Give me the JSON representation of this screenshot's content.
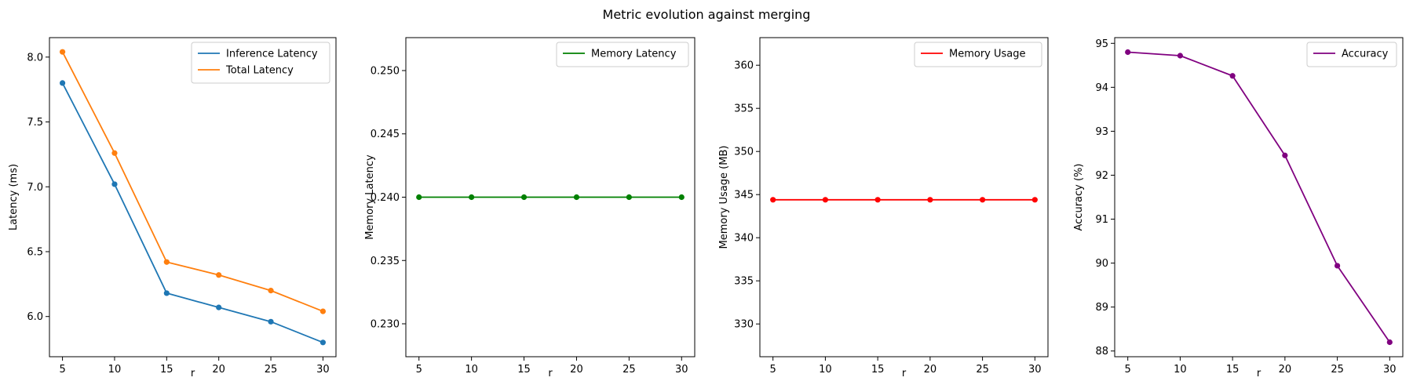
{
  "figure": {
    "title": "Metric evolution against merging"
  },
  "chart_data": [
    {
      "type": "line",
      "xlabel": "r",
      "ylabel": "Latency (ms)",
      "x": [
        5,
        10,
        15,
        20,
        25,
        30
      ],
      "xticks": [
        "5",
        "10",
        "15",
        "20",
        "25",
        "30"
      ],
      "xlim": [
        3.75,
        31.25
      ],
      "ylim": [
        5.69,
        8.15
      ],
      "yticks": [
        6.0,
        6.5,
        7.0,
        7.5,
        8.0
      ],
      "ytick_labels": [
        "6.0",
        "6.5",
        "7.0",
        "7.5",
        "8.0"
      ],
      "legend": "upper right",
      "series": [
        {
          "name": "Inference Latency",
          "color": "#1f77b4",
          "values": [
            7.8,
            7.02,
            6.18,
            6.07,
            5.96,
            5.8
          ]
        },
        {
          "name": "Total Latency",
          "color": "#ff7f0e",
          "values": [
            8.04,
            7.26,
            6.42,
            6.32,
            6.2,
            6.04
          ]
        }
      ]
    },
    {
      "type": "line",
      "xlabel": "r",
      "ylabel": "Memory Latency",
      "x": [
        5,
        10,
        15,
        20,
        25,
        30
      ],
      "xticks": [
        "5",
        "10",
        "15",
        "20",
        "25",
        "30"
      ],
      "xlim": [
        3.75,
        31.25
      ],
      "ylim": [
        0.2274,
        0.2526
      ],
      "yticks": [
        0.23,
        0.235,
        0.24,
        0.245,
        0.25
      ],
      "ytick_labels": [
        "0.230",
        "0.235",
        "0.240",
        "0.245",
        "0.250"
      ],
      "legend": "upper right",
      "series": [
        {
          "name": "Memory Latency",
          "color": "#008000",
          "values": [
            0.24,
            0.24,
            0.24,
            0.24,
            0.24,
            0.24
          ]
        }
      ]
    },
    {
      "type": "line",
      "xlabel": "r",
      "ylabel": "Memory Usage (MB)",
      "x": [
        5,
        10,
        15,
        20,
        25,
        30
      ],
      "xticks": [
        "5",
        "10",
        "15",
        "20",
        "25",
        "30"
      ],
      "xlim": [
        3.75,
        31.25
      ],
      "ylim": [
        326.2,
        363.2
      ],
      "yticks": [
        330,
        335,
        340,
        345,
        350,
        355,
        360
      ],
      "ytick_labels": [
        "330",
        "335",
        "340",
        "345",
        "350",
        "355",
        "360"
      ],
      "legend": "upper right",
      "series": [
        {
          "name": "Memory Usage",
          "color": "#ff0000",
          "values": [
            344.4,
            344.4,
            344.4,
            344.4,
            344.4,
            344.4
          ]
        }
      ]
    },
    {
      "type": "line",
      "xlabel": "r",
      "ylabel": "Accuracy (%)",
      "x": [
        5,
        10,
        15,
        20,
        25,
        30
      ],
      "xticks": [
        "5",
        "10",
        "15",
        "20",
        "25",
        "30"
      ],
      "xlim": [
        3.75,
        31.25
      ],
      "ylim": [
        87.87,
        95.13
      ],
      "yticks": [
        88,
        89,
        90,
        91,
        92,
        93,
        94,
        95
      ],
      "ytick_labels": [
        "88",
        "89",
        "90",
        "91",
        "92",
        "93",
        "94",
        "95"
      ],
      "legend": "upper right",
      "series": [
        {
          "name": "Accuracy",
          "color": "#800080",
          "values": [
            94.8,
            94.72,
            94.26,
            92.45,
            89.94,
            88.2
          ]
        }
      ]
    }
  ]
}
